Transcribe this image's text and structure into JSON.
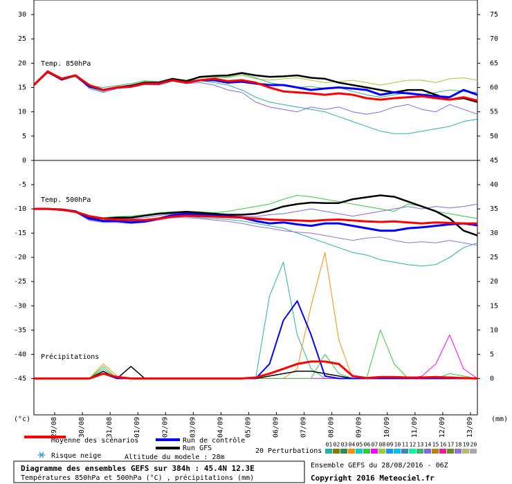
{
  "title": "Diagramme des ensembles GEFS sur 384h : 45.4N 12.3E",
  "subtitle": "Températures 850hPa et 500hPa (°C) , précipitations (mm)",
  "run_info": "Ensemble GEFS du 28/08/2016 - 06Z",
  "copyright": "Copyright 2016 Meteociel.fr",
  "y_unit": "(°c)",
  "y2_unit": "(mm)",
  "snow_risk": "Risque neige",
  "altitude": "Altitude du modele : 28m",
  "perturbations_label": "20 Perturbations",
  "legend": [
    {
      "name": "Moyenne des scénarios",
      "color": "#ff0000"
    },
    {
      "name": "Run de contrôle",
      "color": "#0000ff"
    },
    {
      "name": "Run GFS",
      "color": "#000000"
    }
  ],
  "perturbation_keys": [
    {
      "label": "01",
      "color": "#20b2aa"
    },
    {
      "label": "02",
      "color": "#808000"
    },
    {
      "label": "03",
      "color": "#2e8b57"
    },
    {
      "label": "04",
      "color": "#ff8c00"
    },
    {
      "label": "05",
      "color": "#00ced1"
    },
    {
      "label": "06",
      "color": "#32cd32"
    },
    {
      "label": "07",
      "color": "#ff00ff"
    },
    {
      "label": "08",
      "color": "#9acd32"
    },
    {
      "label": "09",
      "color": "#1e90ff"
    },
    {
      "label": "10",
      "color": "#00bfff"
    },
    {
      "label": "11",
      "color": "#4682b4"
    },
    {
      "label": "12",
      "color": "#00fa9a"
    },
    {
      "label": "13",
      "color": "#3cb371"
    },
    {
      "label": "14",
      "color": "#7b68ee"
    },
    {
      "label": "15",
      "color": "#b8860b"
    },
    {
      "label": "16",
      "color": "#ff1493"
    },
    {
      "label": "17",
      "color": "#6b8e23"
    },
    {
      "label": "18",
      "color": "#9370db"
    },
    {
      "label": "19",
      "color": "#bdb76b"
    },
    {
      "label": "20",
      "color": "#a9a9a9"
    }
  ],
  "chart_data": [
    {
      "type": "line",
      "label": "Temp. 850hPa",
      "x": [
        0,
        12,
        24,
        36,
        48,
        60,
        72,
        84,
        96,
        108,
        120,
        132,
        144,
        156,
        168,
        180,
        192,
        204,
        216,
        228,
        240,
        252,
        264,
        276,
        288,
        300,
        312,
        324,
        336,
        348,
        360,
        372,
        384
      ],
      "xlim": [
        0,
        384
      ],
      "ylim": [
        0,
        33
      ],
      "yticks": [
        0,
        5,
        10,
        15,
        20,
        25,
        30
      ],
      "y2lim": [
        45,
        78
      ],
      "y2ticks": [
        50,
        55,
        60,
        65,
        70,
        75
      ],
      "series": [
        {
          "color": "#20b2aa",
          "width": 1,
          "values": [
            15.5,
            18,
            16.8,
            17.2,
            15,
            14.2,
            15,
            15.3,
            16,
            16,
            16.6,
            16.2,
            16.4,
            16,
            15.5,
            14.5,
            13,
            12,
            11.5,
            11,
            10.5,
            10,
            9,
            8,
            7,
            6,
            5.5,
            5.5,
            6,
            6.5,
            7,
            8,
            8.5
          ]
        },
        {
          "color": "#9acd32",
          "width": 1,
          "values": [
            15.5,
            18.2,
            16.5,
            17.3,
            15.2,
            14.6,
            15.2,
            15.5,
            16.2,
            16,
            16.8,
            16.6,
            17,
            17.2,
            17,
            17.5,
            16.8,
            16.5,
            16.8,
            17,
            16.5,
            16,
            16.2,
            16.5,
            16,
            15.5,
            16,
            16.5,
            16.5,
            16,
            16.8,
            17,
            16.5
          ]
        },
        {
          "color": "#7b68ee",
          "width": 1,
          "values": [
            15.5,
            18,
            16.6,
            17.4,
            14.8,
            14,
            14.8,
            15,
            15.6,
            15.5,
            16.3,
            15.8,
            16,
            15.5,
            14.5,
            14,
            12,
            11,
            10.5,
            10,
            11,
            10.5,
            11,
            10,
            9.5,
            10,
            11,
            11.5,
            10.5,
            10,
            11.5,
            10.5,
            9.5
          ]
        },
        {
          "color": "#3cb371",
          "width": 1,
          "values": [
            15.5,
            18.4,
            17,
            17.6,
            15.4,
            15,
            15.4,
            15.8,
            16.4,
            16.2,
            16.9,
            16.4,
            16.6,
            17,
            17.2,
            17.8,
            17,
            16,
            15.5,
            15,
            15.2,
            14.8,
            15,
            14.2,
            13.5,
            13,
            13.5,
            14,
            13.5,
            14,
            14.5,
            14.2,
            14
          ]
        },
        {
          "color": "#000000",
          "width": 2.5,
          "values": [
            15.5,
            18.2,
            16.6,
            17.5,
            15.2,
            14.5,
            15,
            15.4,
            16,
            16,
            16.8,
            16.3,
            17.2,
            17.4,
            17.5,
            18,
            17.5,
            17.2,
            17.3,
            17.5,
            17,
            16.8,
            16,
            15.5,
            15,
            14.5,
            14,
            14.5,
            14.5,
            13.5,
            12.5,
            12.8,
            12
          ]
        },
        {
          "color": "#0000ff",
          "width": 3,
          "values": [
            15.5,
            18.3,
            16.7,
            17.5,
            15.3,
            14.5,
            15,
            15.2,
            15.8,
            15.8,
            16.5,
            16,
            16.5,
            16.5,
            16,
            16.2,
            15.8,
            15.5,
            15.5,
            15,
            14.5,
            14.8,
            15,
            14.8,
            14.5,
            13.5,
            14,
            13.8,
            13.5,
            13.2,
            13,
            14.5,
            13.5
          ]
        },
        {
          "color": "#ff0000",
          "width": 3,
          "values": [
            15.5,
            18.3,
            16.8,
            17.5,
            15.5,
            14.5,
            15,
            15.2,
            15.8,
            15.8,
            16.5,
            16,
            16.5,
            16.8,
            16.3,
            16.5,
            16,
            15,
            14.2,
            14,
            13.8,
            13.5,
            13.8,
            13.5,
            12.8,
            12.5,
            12.8,
            13,
            13.2,
            12.8,
            12.5,
            13,
            12.3
          ]
        }
      ]
    },
    {
      "type": "line",
      "label": "Temp. 500hPa",
      "precip_label": "Précipitations",
      "x": [
        0,
        12,
        24,
        36,
        48,
        60,
        72,
        84,
        96,
        108,
        120,
        132,
        144,
        156,
        168,
        180,
        192,
        204,
        216,
        228,
        240,
        252,
        264,
        276,
        288,
        300,
        312,
        324,
        336,
        348,
        360,
        372,
        384
      ],
      "xlim": [
        0,
        384
      ],
      "xticks": [
        {
          "value": 18,
          "label": "29/08"
        },
        {
          "value": 42,
          "label": "30/08"
        },
        {
          "value": 66,
          "label": "31/08"
        },
        {
          "value": 90,
          "label": "01/09"
        },
        {
          "value": 114,
          "label": "02/09"
        },
        {
          "value": 138,
          "label": "03/09"
        },
        {
          "value": 162,
          "label": "04/09"
        },
        {
          "value": 186,
          "label": "05/09"
        },
        {
          "value": 210,
          "label": "06/09"
        },
        {
          "value": 234,
          "label": "07/09"
        },
        {
          "value": 258,
          "label": "08/09"
        },
        {
          "value": 282,
          "label": "09/09"
        },
        {
          "value": 306,
          "label": "10/09"
        },
        {
          "value": 330,
          "label": "11/09"
        },
        {
          "value": 354,
          "label": "12/09"
        },
        {
          "value": 378,
          "label": "13/09"
        }
      ],
      "ylim": [
        -52.5,
        0
      ],
      "yticks": [
        -45,
        -40,
        -35,
        -30,
        -25,
        -20,
        -15,
        -10,
        -5
      ],
      "y2lim": [
        -7.5,
        45
      ],
      "y2ticks": [
        0,
        5,
        10,
        15,
        20,
        25,
        30,
        35,
        40,
        45
      ],
      "series": [
        {
          "color": "#20b2aa",
          "width": 1,
          "values": [
            -10,
            -10,
            -10.3,
            -10.8,
            -12.2,
            -12.6,
            -12.6,
            -12.5,
            -12.4,
            -12,
            -11.5,
            -11.6,
            -11.8,
            -12,
            -12.2,
            -12.5,
            -13,
            -13.5,
            -14,
            -15,
            -16,
            -17,
            -18,
            -19,
            -19.5,
            -20.5,
            -21,
            -21.5,
            -21.8,
            -21.5,
            -20,
            -18,
            -17
          ]
        },
        {
          "color": "#32cd32",
          "width": 1,
          "values": [
            -10,
            -10,
            -10.1,
            -10.4,
            -11.4,
            -11.8,
            -11.6,
            -11.5,
            -11.2,
            -10.8,
            -10.6,
            -10.5,
            -10.6,
            -10.8,
            -10.5,
            -10,
            -9.5,
            -9,
            -8,
            -7.2,
            -7.5,
            -8,
            -8.5,
            -9,
            -9.5,
            -10,
            -10.5,
            -9,
            -9.5,
            -10.5,
            -11,
            -11.5,
            -12
          ]
        },
        {
          "color": "#9370db",
          "width": 1,
          "values": [
            -10,
            -10,
            -10.2,
            -10.7,
            -12.4,
            -12.8,
            -12.8,
            -13,
            -12.8,
            -12.3,
            -11.8,
            -11.8,
            -12,
            -12.3,
            -12.6,
            -13,
            -13.6,
            -14,
            -14.5,
            -14.8,
            -15,
            -15.5,
            -16,
            -16.5,
            -16,
            -15.8,
            -16.5,
            -17,
            -16.8,
            -17,
            -16.5,
            -17,
            -17.5
          ]
        },
        {
          "color": "#7b68ee",
          "width": 1,
          "values": [
            -10,
            -10,
            -10.1,
            -10.5,
            -11.6,
            -12,
            -12,
            -12.1,
            -11.8,
            -11.4,
            -11,
            -10.8,
            -11,
            -11.2,
            -11.4,
            -11.5,
            -11.6,
            -11.2,
            -11,
            -10.5,
            -10,
            -10.5,
            -11,
            -11.5,
            -11,
            -10.5,
            -10,
            -9.5,
            -10,
            -9.5,
            -9.8,
            -9.5,
            -9
          ]
        },
        {
          "color": "#000000",
          "width": 2.5,
          "values": [
            -10,
            -10,
            -10.1,
            -10.5,
            -11.8,
            -12,
            -11.8,
            -11.8,
            -11.4,
            -11,
            -10.8,
            -10.6,
            -10.8,
            -11,
            -11.2,
            -11.2,
            -11,
            -10.4,
            -9.5,
            -9,
            -8.7,
            -8.8,
            -8.8,
            -8,
            -7.6,
            -7.2,
            -7.5,
            -8.5,
            -9.5,
            -10.5,
            -12,
            -14.5,
            -15.5
          ]
        },
        {
          "color": "#0000ff",
          "width": 3,
          "values": [
            -10,
            -10,
            -10.2,
            -10.5,
            -12,
            -12.5,
            -12.5,
            -12.8,
            -12.6,
            -12,
            -11.3,
            -11,
            -11.2,
            -11.4,
            -11.5,
            -11.8,
            -12.5,
            -13,
            -12.8,
            -13.2,
            -13.5,
            -13,
            -13,
            -13.5,
            -14,
            -14.5,
            -14.5,
            -14,
            -13.8,
            -13.5,
            -13.2,
            -13,
            -13.4
          ]
        },
        {
          "color": "#ff0000",
          "width": 3,
          "values": [
            -10,
            -10,
            -10.2,
            -10.6,
            -11.5,
            -12,
            -12.2,
            -12.3,
            -12.3,
            -12,
            -11.6,
            -11.4,
            -11.5,
            -11.6,
            -11.7,
            -11.8,
            -12,
            -12.2,
            -12.3,
            -12.4,
            -12.5,
            -12.3,
            -12.2,
            -12.4,
            -12.6,
            -12.7,
            -12.6,
            -12.8,
            -13,
            -12.8,
            -12.9,
            -13,
            -13
          ]
        },
        {
          "color": "#20b2aa",
          "width": 1,
          "axis": "y2",
          "values": [
            0,
            0,
            0,
            0,
            0,
            2,
            0,
            0,
            0,
            0,
            0,
            0,
            0,
            0,
            0,
            0,
            0,
            17,
            24,
            9,
            2,
            0,
            0,
            0,
            0,
            0,
            0,
            0,
            0,
            0,
            0,
            0,
            0
          ]
        },
        {
          "color": "#ff8c00",
          "width": 1,
          "axis": "y2",
          "values": [
            0,
            0,
            0,
            0,
            0,
            3,
            0.5,
            0,
            0,
            0,
            0,
            0,
            0,
            0,
            0,
            0,
            0,
            0,
            0,
            2,
            15,
            26,
            8,
            0,
            0,
            0,
            0,
            0,
            0,
            0,
            0,
            0,
            0
          ]
        },
        {
          "color": "#ff00ff",
          "width": 1,
          "axis": "y2",
          "values": [
            0,
            0,
            0,
            0,
            0,
            1,
            0,
            0,
            0,
            0,
            0,
            0,
            0,
            0,
            0,
            0,
            0,
            0,
            0,
            0,
            0,
            0,
            0,
            0,
            0,
            0,
            0,
            0,
            0.5,
            3,
            9,
            2,
            0
          ]
        },
        {
          "color": "#32cd32",
          "width": 1,
          "axis": "y2",
          "values": [
            0,
            0,
            0,
            0,
            0,
            2.5,
            0,
            0,
            0,
            0,
            0,
            0,
            0,
            0,
            0,
            0,
            0,
            0,
            0,
            0,
            0,
            5,
            1,
            0,
            0,
            10,
            3,
            0,
            0,
            0,
            1,
            0.5,
            0
          ]
        },
        {
          "color": "#000000",
          "width": 1.5,
          "axis": "y2",
          "values": [
            0,
            0,
            0,
            0,
            0,
            1.5,
            0,
            2.5,
            0,
            0,
            0,
            0,
            0,
            0,
            0,
            0,
            0,
            0.5,
            1,
            1.5,
            1.5,
            1,
            0.5,
            0,
            0,
            0,
            0,
            0,
            0,
            0,
            0,
            0,
            0
          ]
        },
        {
          "color": "#0000ff",
          "width": 2,
          "axis": "y2",
          "values": [
            0,
            0,
            0,
            0,
            0,
            1,
            0,
            0,
            0,
            0,
            0,
            0,
            0,
            0,
            0,
            0,
            0,
            3,
            12,
            16,
            9,
            0.5,
            0,
            0,
            0,
            0,
            0,
            0,
            0,
            0,
            0,
            0,
            0
          ]
        },
        {
          "color": "#ff0000",
          "width": 3,
          "axis": "y2",
          "values": [
            0,
            0,
            0,
            0,
            0,
            1,
            0.3,
            0,
            0,
            0,
            0,
            0,
            0,
            0,
            0,
            0,
            0.2,
            1,
            2,
            3,
            3.5,
            3.5,
            3,
            0.5,
            0.1,
            0.3,
            0.3,
            0.2,
            0.2,
            0.3,
            0.2,
            0.1,
            0
          ]
        }
      ]
    }
  ]
}
